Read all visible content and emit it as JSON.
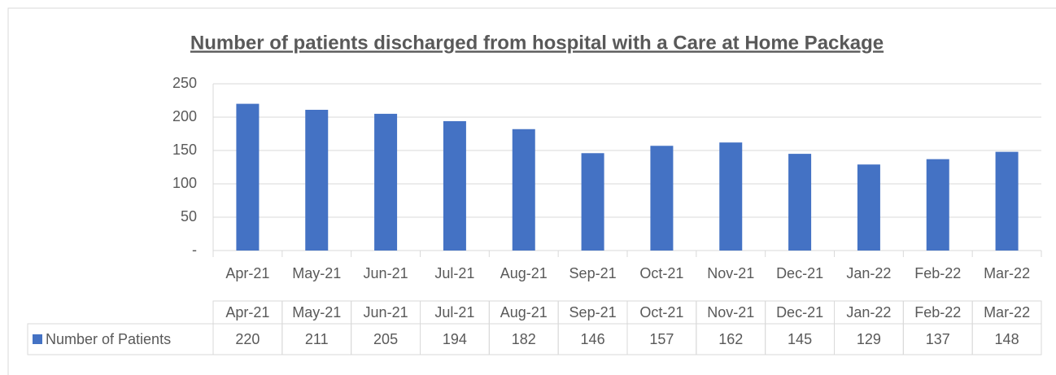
{
  "chart_data": {
    "type": "bar",
    "title": "Number of patients discharged from hospital with a Care at Home Package",
    "categories": [
      "Apr-21",
      "May-21",
      "Jun-21",
      "Jul-21",
      "Aug-21",
      "Sep-21",
      "Oct-21",
      "Nov-21",
      "Dec-21",
      "Jan-22",
      "Feb-22",
      "Mar-22"
    ],
    "series": [
      {
        "name": "Number of Patients",
        "color": "#4472c4",
        "values": [
          220,
          211,
          205,
          194,
          182,
          146,
          157,
          162,
          145,
          129,
          137,
          148
        ]
      }
    ],
    "ylim": [
      0,
      250
    ],
    "yticks": [
      {
        "value": 0,
        "label": "-"
      },
      50,
      100,
      150,
      200,
      250
    ],
    "grid": true
  }
}
